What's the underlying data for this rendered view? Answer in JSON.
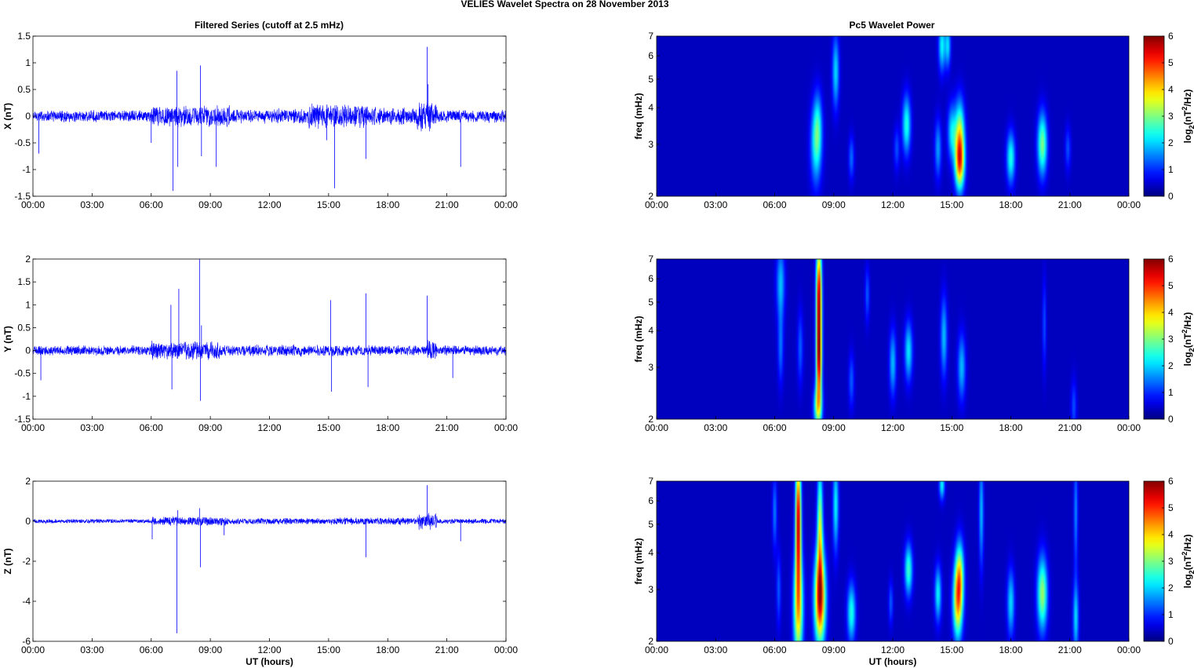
{
  "figure": {
    "title": "VELIES Wavelet Spectra on 28 November  2013",
    "left_title": "Filtered Series (cutoff at 2.5 mHz)",
    "right_title": "Pc5 Wavelet Power"
  },
  "colors": {
    "trace": "#0000ff",
    "background_power": "#00008f"
  },
  "colormap": "jet",
  "chart_data": [
    {
      "type": "line",
      "name": "x-series",
      "ylabel": "X (nT)",
      "xlabel": "",
      "ylim": [
        -1.5,
        1.5
      ],
      "yticks": [
        "1.5",
        "1",
        "0.5",
        "0",
        "-0.5",
        "-1",
        "-1.5"
      ],
      "xticks": [
        "00:00",
        "03:00",
        "06:00",
        "09:00",
        "12:00",
        "15:00",
        "18:00",
        "21:00",
        "00:00"
      ],
      "xlim_hours": [
        0,
        24
      ],
      "noise_envelope": [
        {
          "from_h": 0,
          "to_h": 6,
          "amp": 0.12
        },
        {
          "from_h": 6,
          "to_h": 10,
          "amp": 0.22
        },
        {
          "from_h": 10,
          "to_h": 14,
          "amp": 0.15
        },
        {
          "from_h": 14,
          "to_h": 17,
          "amp": 0.25
        },
        {
          "from_h": 17,
          "to_h": 19.5,
          "amp": 0.18
        },
        {
          "from_h": 19.5,
          "to_h": 20.5,
          "amp": 0.3
        },
        {
          "from_h": 20.5,
          "to_h": 24,
          "amp": 0.13
        }
      ],
      "spikes": [
        {
          "h": 0.3,
          "v": -0.7
        },
        {
          "h": 6.0,
          "v": -0.5
        },
        {
          "h": 7.1,
          "v": -1.4
        },
        {
          "h": 7.3,
          "v": 0.85
        },
        {
          "h": 7.35,
          "v": -0.95
        },
        {
          "h": 8.5,
          "v": 0.95
        },
        {
          "h": 8.55,
          "v": -0.75
        },
        {
          "h": 9.3,
          "v": -0.95
        },
        {
          "h": 14.9,
          "v": -0.45
        },
        {
          "h": 15.3,
          "v": -1.35
        },
        {
          "h": 16.9,
          "v": -0.8
        },
        {
          "h": 20.0,
          "v": 1.3
        },
        {
          "h": 20.05,
          "v": 0.6
        },
        {
          "h": 21.7,
          "v": -0.95
        }
      ]
    },
    {
      "type": "line",
      "name": "y-series",
      "ylabel": "Y (nT)",
      "xlabel": "",
      "ylim": [
        -1.5,
        2
      ],
      "yticks": [
        "2",
        "1.5",
        "1",
        "0.5",
        "0",
        "-0.5",
        "-1",
        "-1.5"
      ],
      "xticks": [
        "00:00",
        "03:00",
        "06:00",
        "09:00",
        "12:00",
        "15:00",
        "18:00",
        "21:00",
        "00:00"
      ],
      "xlim_hours": [
        0,
        24
      ],
      "noise_envelope": [
        {
          "from_h": 0,
          "to_h": 6,
          "amp": 0.12
        },
        {
          "from_h": 6,
          "to_h": 9.5,
          "amp": 0.22
        },
        {
          "from_h": 9.5,
          "to_h": 16,
          "amp": 0.14
        },
        {
          "from_h": 16,
          "to_h": 20,
          "amp": 0.12
        },
        {
          "from_h": 20,
          "to_h": 20.5,
          "amp": 0.25
        },
        {
          "from_h": 20.5,
          "to_h": 24,
          "amp": 0.12
        }
      ],
      "spikes": [
        {
          "h": 0.4,
          "v": -0.65
        },
        {
          "h": 7.0,
          "v": 1.0
        },
        {
          "h": 7.05,
          "v": -0.85
        },
        {
          "h": 7.4,
          "v": 1.35
        },
        {
          "h": 8.45,
          "v": 2.0
        },
        {
          "h": 8.5,
          "v": -1.1
        },
        {
          "h": 8.55,
          "v": 0.55
        },
        {
          "h": 15.1,
          "v": 1.1
        },
        {
          "h": 15.15,
          "v": -0.9
        },
        {
          "h": 16.9,
          "v": 1.25
        },
        {
          "h": 17.0,
          "v": -0.8
        },
        {
          "h": 20.0,
          "v": 1.2
        },
        {
          "h": 21.3,
          "v": -0.6
        }
      ]
    },
    {
      "type": "line",
      "name": "z-series",
      "ylabel": "Z (nT)",
      "xlabel": "UT (hours)",
      "ylim": [
        -6,
        2
      ],
      "yticks": [
        "2",
        "0",
        "-2",
        "-4",
        "-6"
      ],
      "xticks": [
        "00:00",
        "03:00",
        "06:00",
        "09:00",
        "12:00",
        "15:00",
        "18:00",
        "21:00",
        "00:00"
      ],
      "xlim_hours": [
        0,
        24
      ],
      "noise_envelope": [
        {
          "from_h": 0,
          "to_h": 6,
          "amp": 0.12
        },
        {
          "from_h": 6,
          "to_h": 10,
          "amp": 0.25
        },
        {
          "from_h": 10,
          "to_h": 15,
          "amp": 0.17
        },
        {
          "from_h": 15,
          "to_h": 19.5,
          "amp": 0.2
        },
        {
          "from_h": 19.5,
          "to_h": 20.5,
          "amp": 0.45
        },
        {
          "from_h": 20.5,
          "to_h": 24,
          "amp": 0.14
        }
      ],
      "spikes": [
        {
          "h": 6.05,
          "v": -0.9
        },
        {
          "h": 7.3,
          "v": -5.6
        },
        {
          "h": 7.35,
          "v": 0.55
        },
        {
          "h": 8.45,
          "v": 0.65
        },
        {
          "h": 8.5,
          "v": -2.3
        },
        {
          "h": 9.7,
          "v": -0.7
        },
        {
          "h": 16.9,
          "v": -1.8
        },
        {
          "h": 20.0,
          "v": 1.8
        },
        {
          "h": 21.7,
          "v": -1.0
        }
      ]
    },
    {
      "type": "heatmap",
      "name": "x-power",
      "ylabel": "freq (mHz)",
      "xlabel": "",
      "ylim": [
        2,
        7
      ],
      "yscale": "log",
      "yticks": [
        7,
        6,
        5,
        4,
        3,
        2
      ],
      "xticks": [
        "00:00",
        "03:00",
        "06:00",
        "09:00",
        "12:00",
        "15:00",
        "18:00",
        "21:00",
        "00:00"
      ],
      "colorbar_label": "log2(nT^2/Hz)",
      "clim": [
        0,
        6
      ],
      "colorbar_ticks": [
        6,
        5,
        4,
        3,
        2,
        1,
        0
      ],
      "blobs": [
        {
          "t": 8.1,
          "f": 3.0,
          "dt": 0.2,
          "df": 0.22,
          "p": 2.0
        },
        {
          "t": 8.2,
          "f": 3.5,
          "dt": 0.15,
          "df": 0.18,
          "p": 1.2
        },
        {
          "t": 9.1,
          "f": 5.3,
          "dt": 0.12,
          "df": 0.2,
          "p": 1.8
        },
        {
          "t": 9.9,
          "f": 2.7,
          "dt": 0.1,
          "df": 0.12,
          "p": 1.1
        },
        {
          "t": 12.7,
          "f": 3.5,
          "dt": 0.15,
          "df": 0.16,
          "p": 2.2
        },
        {
          "t": 12.2,
          "f": 2.9,
          "dt": 0.1,
          "df": 0.12,
          "p": 0.9
        },
        {
          "t": 14.3,
          "f": 2.9,
          "dt": 0.12,
          "df": 0.16,
          "p": 1.4
        },
        {
          "t": 14.5,
          "f": 6.5,
          "dt": 0.12,
          "df": 0.14,
          "p": 2.0
        },
        {
          "t": 14.8,
          "f": 6.5,
          "dt": 0.1,
          "df": 0.12,
          "p": 1.8
        },
        {
          "t": 15.0,
          "f": 3.3,
          "dt": 0.15,
          "df": 0.15,
          "p": 1.8
        },
        {
          "t": 15.4,
          "f": 2.6,
          "dt": 0.17,
          "df": 0.15,
          "p": 4.2
        },
        {
          "t": 15.4,
          "f": 3.3,
          "dt": 0.17,
          "df": 0.18,
          "p": 2.8
        },
        {
          "t": 18.0,
          "f": 2.7,
          "dt": 0.15,
          "df": 0.14,
          "p": 2.2
        },
        {
          "t": 19.6,
          "f": 3.0,
          "dt": 0.17,
          "df": 0.17,
          "p": 2.8
        },
        {
          "t": 20.9,
          "f": 2.9,
          "dt": 0.1,
          "df": 0.12,
          "p": 0.9
        }
      ]
    },
    {
      "type": "heatmap",
      "name": "y-power",
      "ylabel": "freq (mHz)",
      "xlabel": "",
      "ylim": [
        2,
        7
      ],
      "yscale": "log",
      "yticks": [
        7,
        6,
        5,
        4,
        3,
        2
      ],
      "xticks": [
        "00:00",
        "03:00",
        "06:00",
        "09:00",
        "12:00",
        "15:00",
        "18:00",
        "21:00",
        "00:00"
      ],
      "colorbar_label": "log2(nT^2/Hz)",
      "clim": [
        0,
        6
      ],
      "colorbar_ticks": [
        6,
        5,
        4,
        3,
        2,
        1,
        0
      ],
      "blobs": [
        {
          "t": 6.3,
          "f": 5.8,
          "dt": 0.15,
          "df": 0.2,
          "p": 1.6
        },
        {
          "t": 6.3,
          "f": 3.5,
          "dt": 0.1,
          "df": 0.2,
          "p": 1.1
        },
        {
          "t": 8.2,
          "f": 2.2,
          "dt": 0.15,
          "df": 0.12,
          "p": 3.0
        },
        {
          "t": 8.25,
          "f": 3.0,
          "dt": 0.1,
          "df": 0.2,
          "p": 3.8
        },
        {
          "t": 8.25,
          "f": 4.2,
          "dt": 0.1,
          "df": 0.25,
          "p": 4.3
        },
        {
          "t": 8.25,
          "f": 6.0,
          "dt": 0.1,
          "df": 0.22,
          "p": 3.5
        },
        {
          "t": 7.3,
          "f": 3.5,
          "dt": 0.1,
          "df": 0.2,
          "p": 1.0
        },
        {
          "t": 9.9,
          "f": 2.7,
          "dt": 0.1,
          "df": 0.15,
          "p": 1.0
        },
        {
          "t": 10.7,
          "f": 5.3,
          "dt": 0.08,
          "df": 0.15,
          "p": 1.0
        },
        {
          "t": 12.0,
          "f": 3.1,
          "dt": 0.12,
          "df": 0.18,
          "p": 1.6
        },
        {
          "t": 12.8,
          "f": 3.4,
          "dt": 0.14,
          "df": 0.16,
          "p": 1.9
        },
        {
          "t": 14.6,
          "f": 3.8,
          "dt": 0.12,
          "df": 0.22,
          "p": 1.6
        },
        {
          "t": 15.5,
          "f": 3.0,
          "dt": 0.14,
          "df": 0.18,
          "p": 1.6
        },
        {
          "t": 19.7,
          "f": 4.2,
          "dt": 0.07,
          "df": 0.25,
          "p": 0.9
        },
        {
          "t": 21.2,
          "f": 2.2,
          "dt": 0.1,
          "df": 0.15,
          "p": 0.9
        }
      ]
    },
    {
      "type": "heatmap",
      "name": "z-power",
      "ylabel": "freq (mHz)",
      "xlabel": "UT (hours)",
      "ylim": [
        2,
        7
      ],
      "yscale": "log",
      "yticks": [
        7,
        6,
        5,
        4,
        3,
        2
      ],
      "xticks": [
        "00:00",
        "03:00",
        "06:00",
        "09:00",
        "12:00",
        "15:00",
        "18:00",
        "21:00",
        "00:00"
      ],
      "colorbar_label": "log2(nT^2/Hz)",
      "clim": [
        0,
        6
      ],
      "colorbar_ticks": [
        6,
        5,
        4,
        3,
        2,
        1,
        0
      ],
      "blobs": [
        {
          "t": 7.2,
          "f": 2.6,
          "dt": 0.17,
          "df": 0.3,
          "p": 3.8
        },
        {
          "t": 7.2,
          "f": 5.2,
          "dt": 0.1,
          "df": 0.35,
          "p": 5.5
        },
        {
          "t": 8.3,
          "f": 2.8,
          "dt": 0.2,
          "df": 0.25,
          "p": 5.2
        },
        {
          "t": 8.3,
          "f": 4.8,
          "dt": 0.1,
          "df": 0.35,
          "p": 3.2
        },
        {
          "t": 6.0,
          "f": 5.5,
          "dt": 0.08,
          "df": 0.2,
          "p": 1.2
        },
        {
          "t": 6.2,
          "f": 3.0,
          "dt": 0.08,
          "df": 0.2,
          "p": 1.0
        },
        {
          "t": 9.1,
          "f": 5.8,
          "dt": 0.1,
          "df": 0.25,
          "p": 2.0
        },
        {
          "t": 9.9,
          "f": 2.5,
          "dt": 0.15,
          "df": 0.16,
          "p": 2.2
        },
        {
          "t": 11.9,
          "f": 2.7,
          "dt": 0.08,
          "df": 0.12,
          "p": 1.0
        },
        {
          "t": 12.8,
          "f": 3.5,
          "dt": 0.14,
          "df": 0.14,
          "p": 2.4
        },
        {
          "t": 14.3,
          "f": 2.9,
          "dt": 0.12,
          "df": 0.15,
          "p": 2.0
        },
        {
          "t": 14.5,
          "f": 6.8,
          "dt": 0.1,
          "df": 0.08,
          "p": 2.0
        },
        {
          "t": 15.3,
          "f": 2.7,
          "dt": 0.17,
          "df": 0.2,
          "p": 3.8
        },
        {
          "t": 15.4,
          "f": 3.4,
          "dt": 0.15,
          "df": 0.18,
          "p": 2.8
        },
        {
          "t": 16.5,
          "f": 5.5,
          "dt": 0.08,
          "df": 0.3,
          "p": 1.6
        },
        {
          "t": 18.0,
          "f": 2.7,
          "dt": 0.13,
          "df": 0.18,
          "p": 1.8
        },
        {
          "t": 19.6,
          "f": 2.9,
          "dt": 0.18,
          "df": 0.2,
          "p": 3.0
        },
        {
          "t": 21.3,
          "f": 2.4,
          "dt": 0.1,
          "df": 0.2,
          "p": 1.8
        },
        {
          "t": 21.3,
          "f": 5.5,
          "dt": 0.07,
          "df": 0.3,
          "p": 1.3
        }
      ]
    }
  ]
}
